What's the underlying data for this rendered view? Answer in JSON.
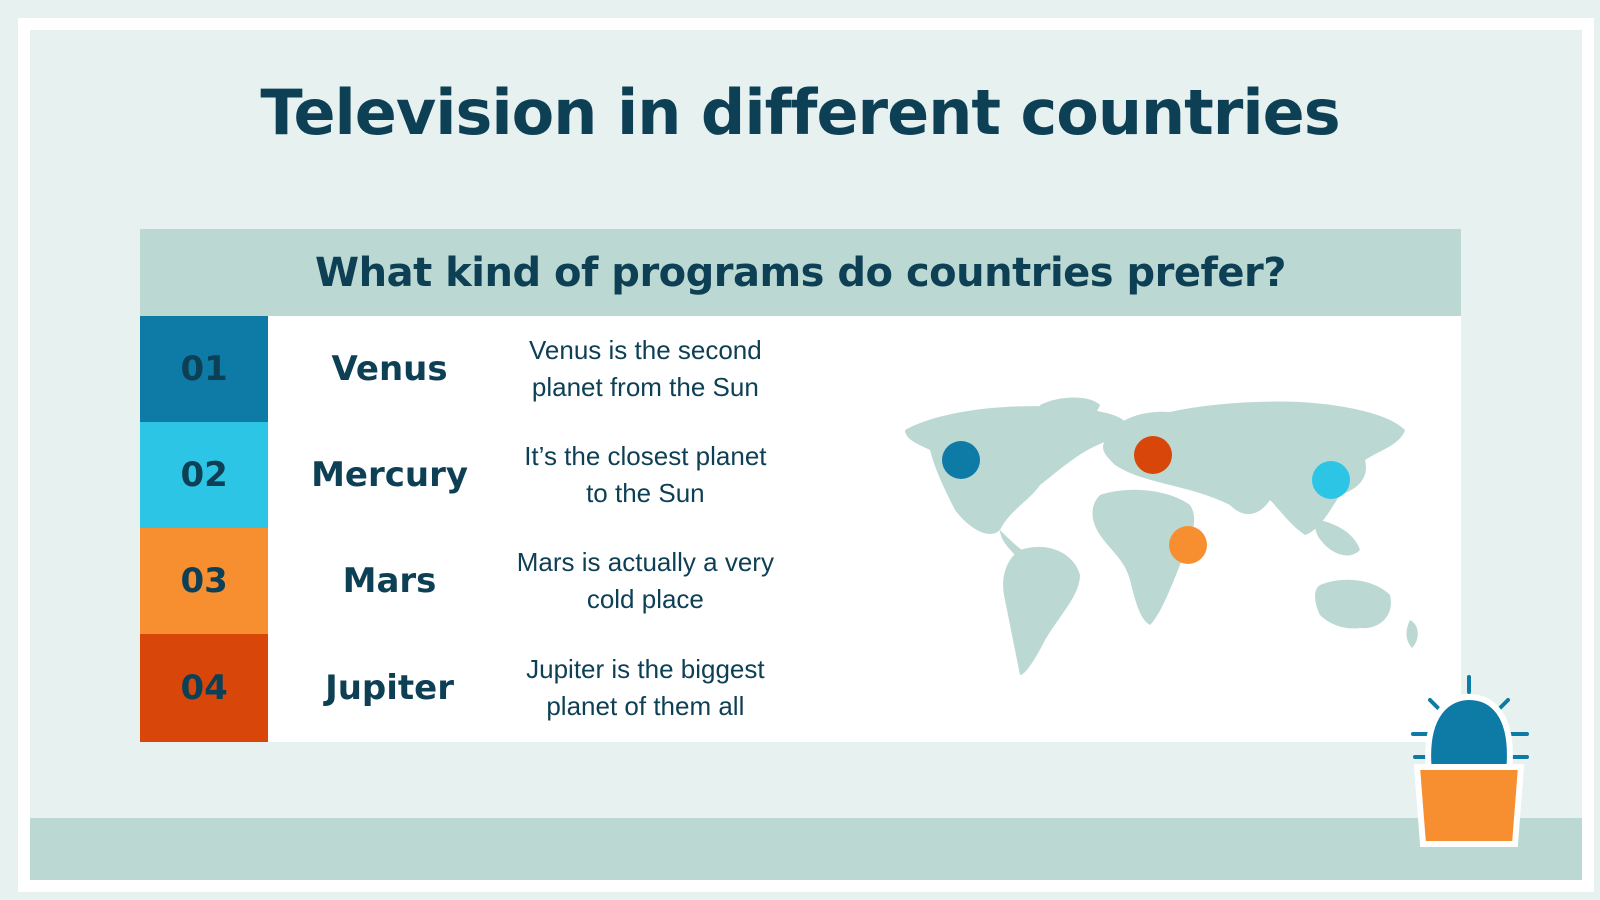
{
  "title": "Television in different countries",
  "table": {
    "header": "What kind of programs do countries prefer?",
    "rows": [
      {
        "number": "01",
        "name": "Venus",
        "description": "Venus is the second planet from the Sun"
      },
      {
        "number": "02",
        "name": "Mercury",
        "description": "It’s the closest planet to the Sun"
      },
      {
        "number": "03",
        "name": "Mars",
        "description": "Mars is actually a very cold place"
      },
      {
        "number": "04",
        "name": "Jupiter",
        "description": "Jupiter is the biggest planet of them all"
      }
    ]
  }
}
